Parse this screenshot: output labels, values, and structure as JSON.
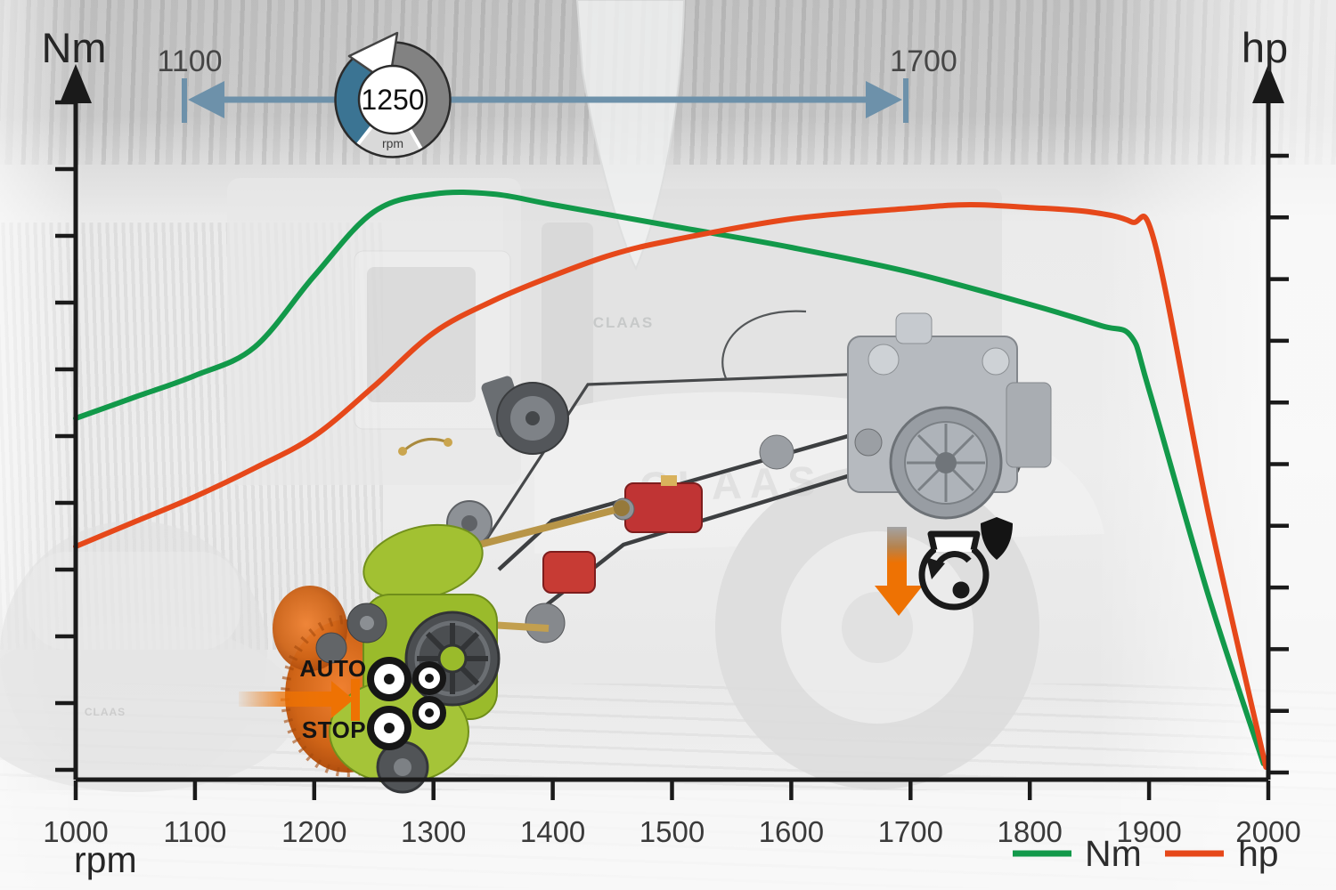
{
  "axes": {
    "left_title": "Nm",
    "right_title": "hp",
    "bottom_unit": "rpm"
  },
  "range_selector": {
    "min_label": "1100",
    "max_label": "1700",
    "dial_value": "1250",
    "dial_unit": "rpm",
    "track_color": "#6d91aa",
    "active_color": "#3b7493",
    "inactive_color": "#828282",
    "track_light_color": "#d9d9d9"
  },
  "icons": {
    "feed_stop": {
      "auto_label": "AUTO",
      "stop_label": "STOP",
      "accent_color": "#ee7203"
    },
    "engine_protection": {
      "accent_color": "#ee7203"
    }
  },
  "legend": [
    {
      "label": "Nm",
      "color": "#12994a"
    },
    {
      "label": "hp",
      "color": "#e6481a"
    }
  ],
  "background": {
    "brand": "CLAAS"
  },
  "chart_data": {
    "type": "line",
    "xlabel": "rpm",
    "ylabel_left": "Nm",
    "ylabel_right": "hp",
    "xlim": [
      1000,
      2000
    ],
    "x_tick_labels": [
      "1000",
      "1100",
      "1200",
      "1300",
      "1400",
      "1500",
      "1600",
      "1700",
      "1800",
      "1900",
      "2000"
    ],
    "y_axis_left": {
      "tick_count": 11,
      "numeric_labels": false
    },
    "y_axis_right": {
      "tick_count": 11,
      "numeric_labels": false
    },
    "grid": false,
    "legend_position": "bottom-right",
    "highlight_range_rpm": [
      1100,
      1700
    ],
    "dial_rpm": 1250,
    "note": "y_pct values are percent of plot height; the chart shows no numeric y-axis labels",
    "series": [
      {
        "name": "Nm",
        "color": "#12994a",
        "x": [
          1000,
          1050,
          1100,
          1150,
          1200,
          1250,
          1300,
          1350,
          1400,
          1500,
          1600,
          1700,
          1800,
          1860,
          1885,
          1900,
          1950,
          1996
        ],
        "y_pct": [
          51,
          54,
          57,
          61,
          71,
          80,
          82.5,
          82.5,
          81,
          78,
          75,
          71.5,
          67,
          64,
          62.5,
          55,
          26,
          2.5
        ]
      },
      {
        "name": "hp",
        "color": "#e6481a",
        "x": [
          1000,
          1050,
          1100,
          1150,
          1200,
          1250,
          1300,
          1350,
          1400,
          1450,
          1500,
          1600,
          1700,
          1750,
          1800,
          1850,
          1885,
          1905,
          1950,
          1998
        ],
        "y_pct": [
          33,
          36.5,
          40,
          44,
          48.5,
          55.5,
          63,
          67.5,
          71,
          74,
          76,
          79,
          80.5,
          81,
          80.6,
          80,
          78.6,
          75.5,
          37.5,
          2
        ]
      }
    ]
  }
}
